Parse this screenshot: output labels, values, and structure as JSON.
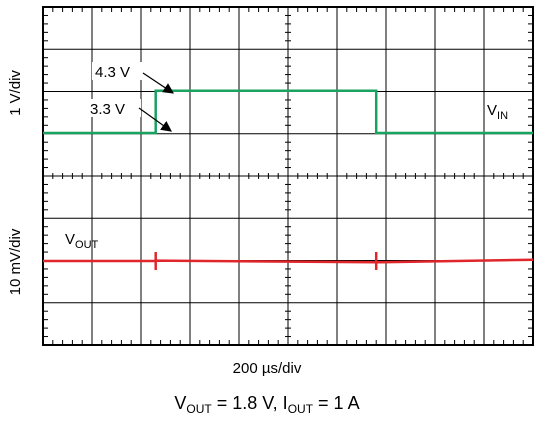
{
  "chart_data": {
    "type": "line",
    "grid": true,
    "x_divisions": 10,
    "x_per_div_label": "200 µs/div",
    "x": [
      0,
      2.3,
      2.3,
      6.8,
      6.8,
      10
    ],
    "channels": [
      {
        "name": "VIN",
        "label_main": "V",
        "label_sub": "IN",
        "scale_label": "1 V/div",
        "color": "#1aa260",
        "values": [
          3.3,
          3.3,
          4.3,
          4.3,
          3.3,
          3.3
        ]
      },
      {
        "name": "VOUT",
        "label_main": "V",
        "label_sub": "OUT",
        "scale_label": "10 mV/div",
        "color": "#e0262b",
        "values": [
          0,
          0,
          0.1,
          -0.3,
          -0.3,
          0.3
        ],
        "markers_x": [
          2.3,
          6.8
        ]
      }
    ],
    "annotations": [
      {
        "text": "4.3 V",
        "x": 2.3,
        "value": 4.3
      },
      {
        "text": "3.3 V",
        "x": 2.3,
        "value": 3.3
      }
    ],
    "conditions": {
      "a_main": "V",
      "a_sub": "OUT",
      "a_rest": " = 1.8 V, ",
      "b_main": "I",
      "b_sub": "OUT",
      "b_rest": " = 1 A"
    }
  }
}
